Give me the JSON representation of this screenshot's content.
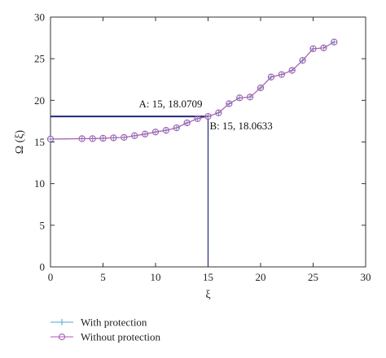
{
  "chart_data": {
    "type": "line",
    "xlabel": "ξ",
    "ylabel": "Ω (ξ)",
    "xlim": [
      0,
      30
    ],
    "ylim": [
      0,
      30
    ],
    "xticks": [
      0,
      5,
      10,
      15,
      20,
      25,
      30
    ],
    "yticks": [
      0,
      5,
      10,
      15,
      20,
      25,
      30
    ],
    "grid": false,
    "legend_position": "bottom-left, below plot",
    "series": [
      {
        "name": "With protection",
        "color": "#4aa8c8",
        "marker": "plus",
        "x": [
          0,
          3,
          4,
          5,
          6,
          7,
          8,
          9,
          10,
          11,
          12,
          13,
          14,
          15,
          16,
          17,
          18,
          19,
          20,
          21,
          22,
          23,
          24,
          25,
          26,
          27
        ],
        "y": [
          15.35,
          15.4,
          15.4,
          15.45,
          15.5,
          15.55,
          15.75,
          15.95,
          16.2,
          16.4,
          16.7,
          17.3,
          17.8,
          18.0633,
          18.5,
          19.6,
          20.3,
          20.4,
          21.5,
          22.8,
          23.1,
          23.6,
          24.8,
          26.2,
          26.3,
          27.0
        ]
      },
      {
        "name": "Without protection",
        "color": "#b05ab0",
        "marker": "circle",
        "x": [
          0,
          3,
          4,
          5,
          6,
          7,
          8,
          9,
          10,
          11,
          12,
          13,
          14,
          15,
          16,
          17,
          18,
          19,
          20,
          21,
          22,
          23,
          24,
          25,
          26,
          27
        ],
        "y": [
          15.35,
          15.4,
          15.4,
          15.45,
          15.5,
          15.55,
          15.75,
          15.95,
          16.2,
          16.4,
          16.7,
          17.3,
          17.8,
          18.0709,
          18.5,
          19.6,
          20.3,
          20.4,
          21.5,
          22.8,
          23.1,
          23.6,
          24.8,
          26.2,
          26.3,
          27.0
        ]
      }
    ],
    "reference_lines": [
      {
        "orientation": "horizontal",
        "value": 18.0709,
        "from": 0,
        "to": 15,
        "color": "#1f2a7a"
      },
      {
        "orientation": "vertical",
        "value": 15,
        "from": 0,
        "to": 18.0709,
        "color": "#1f2a7a"
      }
    ],
    "annotations": [
      {
        "text": "A: 15, 18.0709",
        "x": 15,
        "y": 18.0709,
        "placement": "above-left"
      },
      {
        "text": "B: 15, 18.0633",
        "x": 15,
        "y": 18.0633,
        "placement": "below-right"
      }
    ]
  }
}
